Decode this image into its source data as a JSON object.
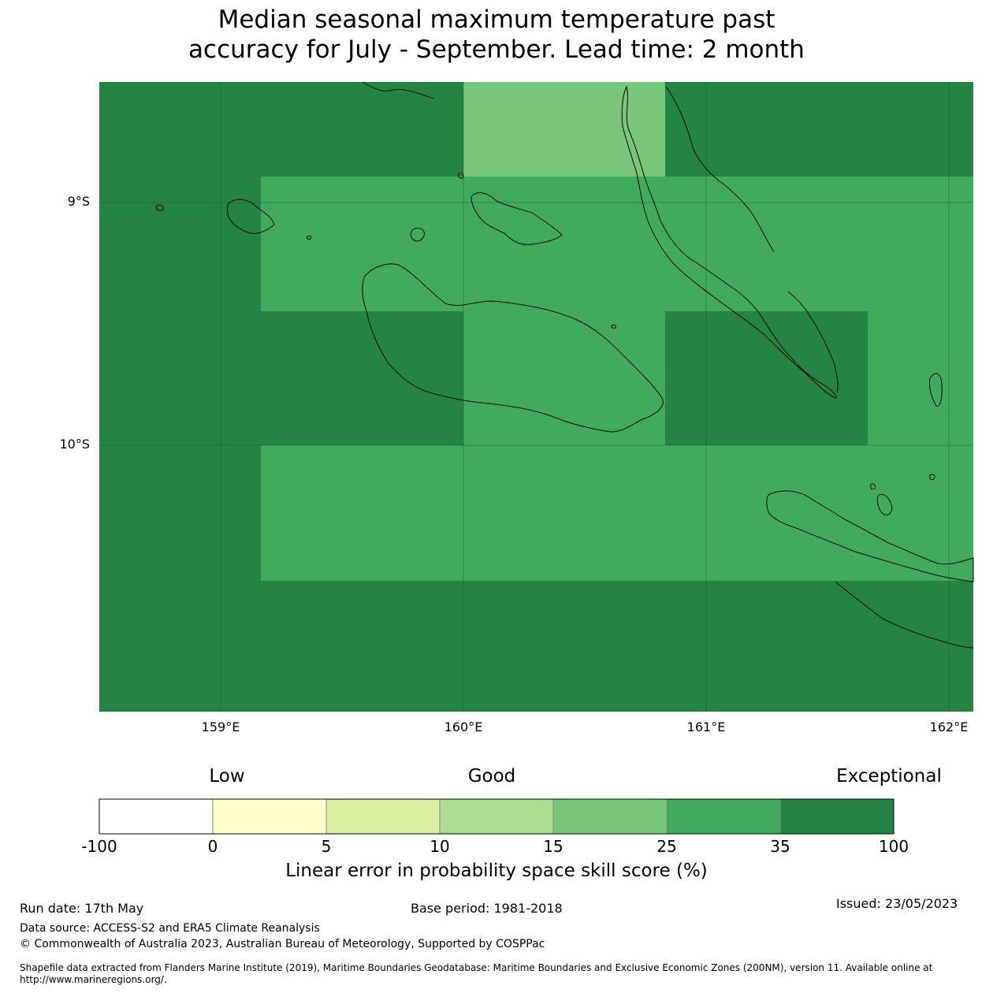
{
  "title": {
    "line1": "Median seasonal maximum temperature past",
    "line2": "accuracy for July - September. Lead time: 2 month"
  },
  "map": {
    "lon_range": [
      158.5,
      162.1
    ],
    "lat_range": [
      -8.5,
      -11.1
    ],
    "cell_size_deg": [
      0.833,
      0.556
    ],
    "lat_ticks": [
      "9°S",
      "10°S"
    ],
    "lon_ticks": [
      "159°E",
      "160°E",
      "161°E",
      "162°E"
    ],
    "grid": true,
    "coastline_color": "#000000"
  },
  "legend": {
    "categories": [
      "Low",
      "Good",
      "Exceptional"
    ],
    "bins": [
      "-100",
      "0",
      "5",
      "10",
      "15",
      "25",
      "35",
      "100"
    ],
    "colors": [
      "#ffffff",
      "#ffffcc",
      "#d9f0a3",
      "#addd8e",
      "#78c679",
      "#41ab5d",
      "#238443"
    ],
    "title": "Linear error in probability space skill score (%)"
  },
  "footer": {
    "run_date": "Run date: 17th May",
    "base_period": "Base period: 1981-2018",
    "issued": "Issued: 23/05/2023",
    "data_source": "Data source: ACCESS-S2 and ERA5 Climate Reanalysis",
    "copyright": "© Commonwealth of Australia 2023, Australian Bureau of Meteorology, Supported by COSPPac",
    "shapefile": "Shapefile data extracted from Flanders Marine Institute (2019), Maritime Boundaries Geodatabase: Maritime Boundaries and Exclusive Economic Zones (200NM), version 11. Available online at http://www.marineregions.org/."
  },
  "colors": {
    "exceptional": "#238443",
    "high": "#41ab5d",
    "mid": "#78c679"
  }
}
